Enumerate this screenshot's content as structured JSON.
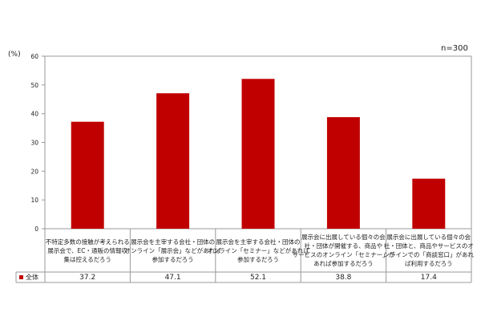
{
  "chart_data": {
    "type": "bar",
    "y_unit_label": "(%)",
    "sample_note": "n=300",
    "ylim": [
      0,
      60
    ],
    "y_ticks": [
      "0",
      "10",
      "20",
      "30",
      "40",
      "50",
      "60"
    ],
    "grid": false,
    "categories": [
      "不特定多数の接触が考えられる展示会で、EC・通販の情報収集は控えるだろう",
      "展示会を主宰する会社・団体のオンライン「展示会」などがあれば参加するだろう",
      "展示会を主宰する会社・団体のオンライン「セミナー」などがあれば参加するだろう",
      "展示会に出展している個々の会社・団体が開催する、商品やサービスのオンライン「セミナー」があれば参加するだろう",
      "展示会に出展している個々の会社・団体と、商品やサービスのオンラインでの「商談窓口」があれば利用するだろう"
    ],
    "category_lines": [
      [
        "不特定多数の接触が考えられる",
        "展示会で、EC・通販の情報収",
        "集は控えるだろう"
      ],
      [
        "展示会を主宰する会社・団体の",
        "オンライン「展示会」などがあれば",
        "参加するだろう"
      ],
      [
        "展示会を主宰する会社・団体の",
        "オンライン「セミナー」などがあれば",
        "参加するだろう"
      ],
      [
        "展示会に出展している個々の会",
        "社・団体が開催する、商品や",
        "サービスのオンライン「セミナー」が",
        "あれば参加するだろう"
      ],
      [
        "展示会に出展している個々の会",
        "社・団体と、商品やサービスのオ",
        "ンラインでの「商談窓口」があれ",
        "ば利用するだろう"
      ]
    ],
    "series": [
      {
        "name": "全体",
        "color": "#c00000",
        "values": [
          37.2,
          47.1,
          52.1,
          38.8,
          17.4
        ],
        "value_labels": [
          "37.2",
          "47.1",
          "52.1",
          "38.8",
          "17.4"
        ]
      }
    ],
    "data_table": true
  }
}
